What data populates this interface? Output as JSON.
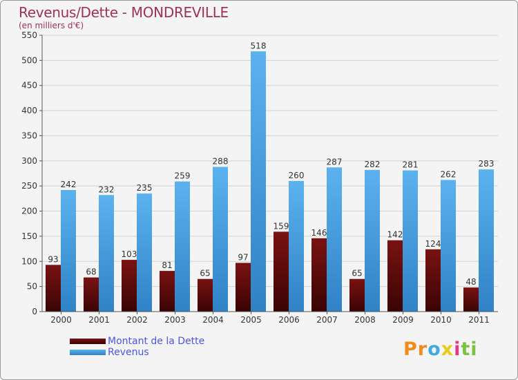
{
  "chart_data": {
    "type": "bar",
    "title": "Revenus/Dette - MONDREVILLE",
    "subtitle": "(en milliers d'€)",
    "categories": [
      "2000",
      "2001",
      "2002",
      "2003",
      "2004",
      "2005",
      "2006",
      "2007",
      "2008",
      "2009",
      "2010",
      "2011"
    ],
    "series": [
      {
        "name": "Montant de la Dette",
        "color": "#6b0a0a",
        "values": [
          93,
          68,
          103,
          81,
          65,
          97,
          159,
          146,
          65,
          142,
          124,
          48
        ]
      },
      {
        "name": "Revenus",
        "color": "#4aa3e6",
        "values": [
          242,
          232,
          235,
          259,
          288,
          518,
          260,
          287,
          282,
          281,
          262,
          283
        ]
      }
    ],
    "ylim": [
      0,
      550
    ],
    "yticks": [
      0,
      50,
      100,
      150,
      200,
      250,
      300,
      350,
      400,
      450,
      500,
      550
    ],
    "grid": true,
    "legend_position": "bottom-left"
  },
  "logo": {
    "part1": "Pr",
    "part2": "o",
    "part3": "x",
    "part4": "i",
    "part5": "ti"
  }
}
